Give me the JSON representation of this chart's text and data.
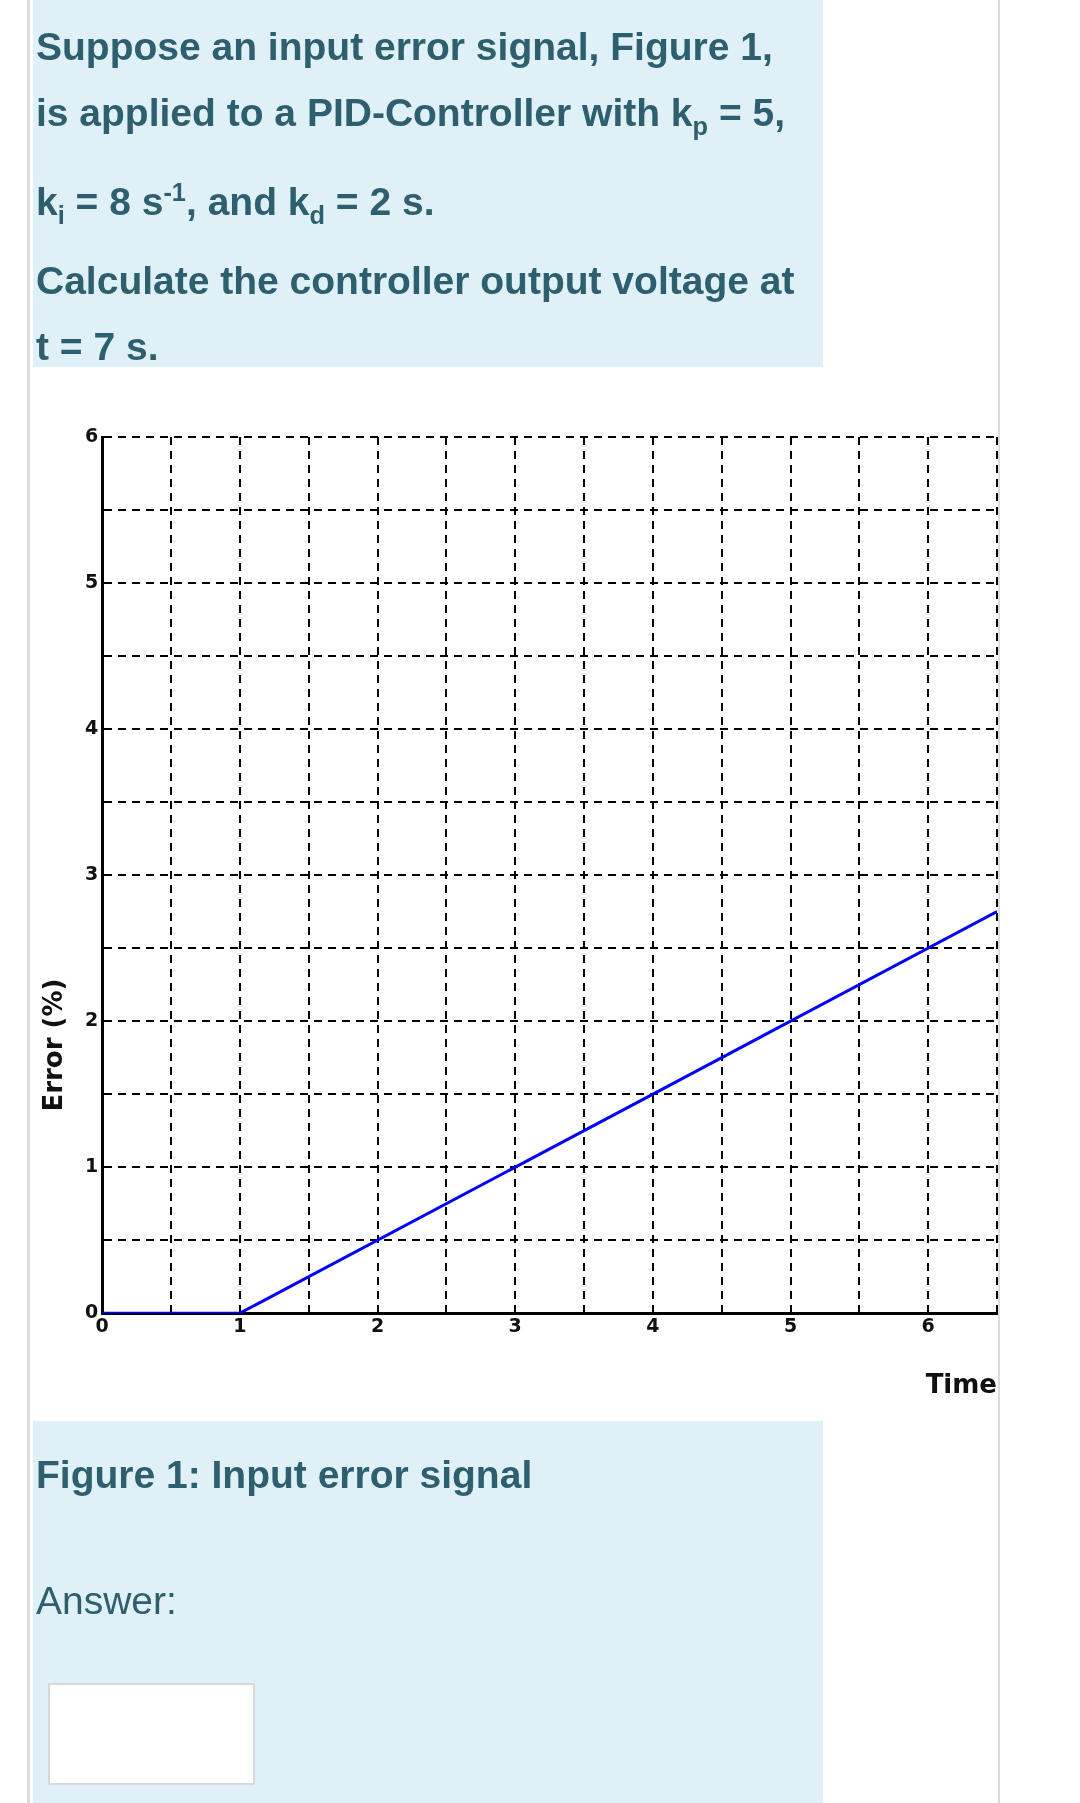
{
  "chart_data": {
    "type": "line",
    "title": "Suppose an input error signal, Figure 1, is applied to a PID-Controller with k$_{p}$ = 5, k$_{i}$ = 8 s$^{-1}$, and k$_{d}$ = 2 s.",
    "subtitle": "Calculate the controller output voltage at t = 7 s.",
    "xlabel": "Time",
    "ylabel": "Error (%)",
    "x": [
      0,
      1,
      6.5
    ],
    "series": [
      {
        "color": "#0000ff",
        "values": [
          0,
          0,
          2.75
        ]
      }
    ],
    "xlim": [
      0,
      6.5
    ],
    "xticks": [
      0,
      {
        "value": 0.5,
        "label": null
      },
      1,
      {
        "value": 1.5,
        "label": null
      },
      2,
      {
        "value": 2.5,
        "label": null
      },
      3,
      {
        "value": 3.5,
        "label": null
      },
      4,
      {
        "value": 4.5,
        "label": null
      },
      5,
      {
        "value": 5.5,
        "label": null
      },
      6,
      {
        "value": 6.5,
        "label": null
      }
    ],
    "ylim": [
      0,
      6
    ],
    "yticks": [
      0,
      {
        "value": 0.5,
        "label": null
      },
      1,
      {
        "value": 1.5,
        "label": null
      },
      2,
      {
        "value": 2.5,
        "label": null
      },
      3,
      {
        "value": 3.5,
        "label": null
      },
      4,
      {
        "value": 4.5,
        "label": null
      },
      5,
      {
        "value": 5.5,
        "label": null
      },
      6
    ],
    "grid": true,
    "marker": "none",
    "line_style": "solid",
    "annotations": [
      "Figure 1: Input error signal",
      "Answer:"
    ]
  }
}
